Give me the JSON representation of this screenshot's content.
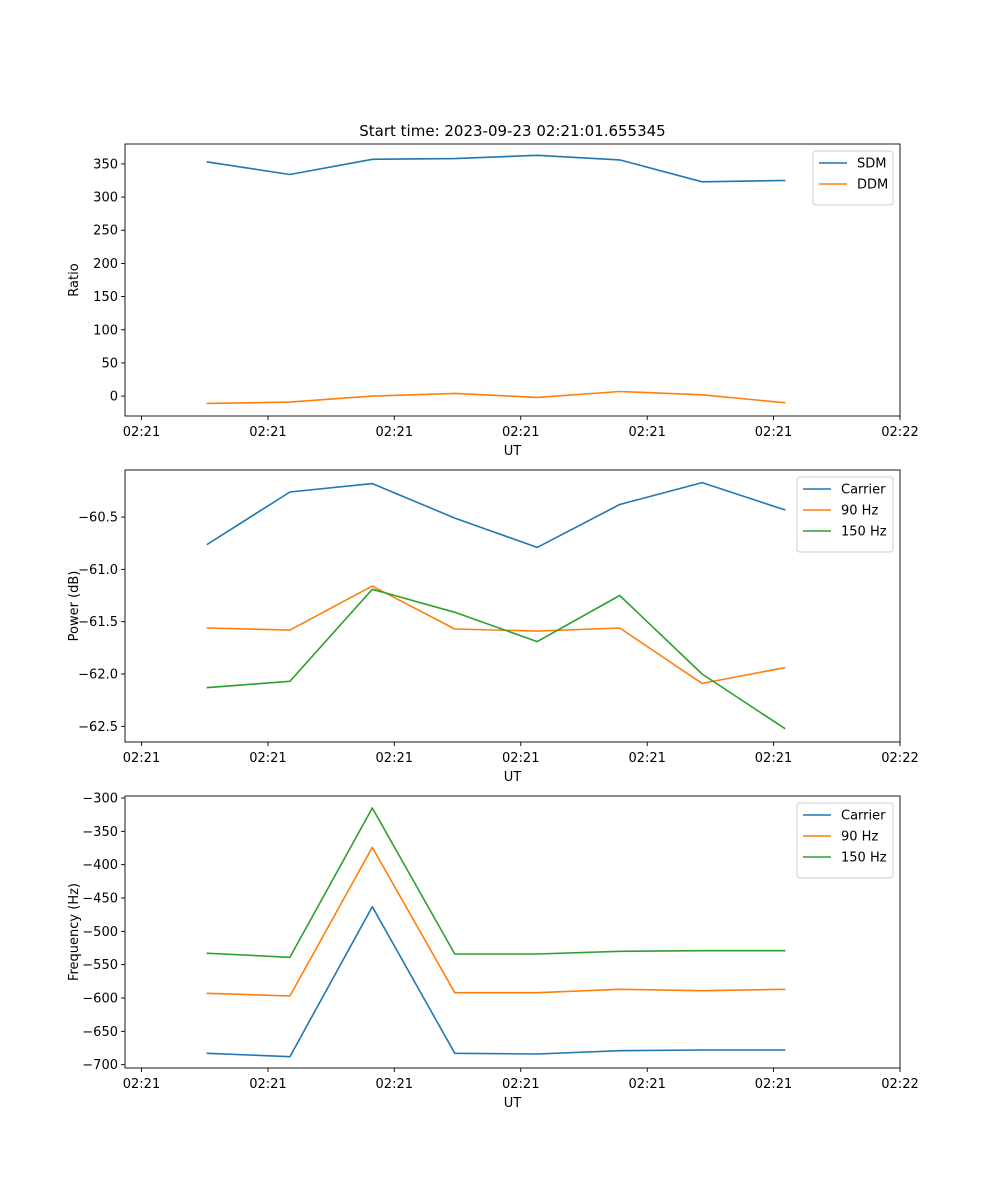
{
  "figure": {
    "title": "Start time: 2023-09-23 02:21:01.655345"
  },
  "chart_data": [
    {
      "type": "line",
      "title": "Start time: 2023-09-23 02:21:01.655345",
      "xlabel": "UT",
      "ylabel": "Ratio",
      "x": [
        0.5,
        1.0,
        1.5,
        2.0,
        2.5,
        3.0,
        3.5,
        4.0
      ],
      "xlim": [
        0,
        4.7
      ],
      "x_ticks": [
        0.1,
        0.867,
        1.633,
        2.4,
        3.167,
        3.933,
        4.7
      ],
      "x_tick_labels": [
        "02:21",
        "02:21",
        "02:21",
        "02:21",
        "02:21",
        "02:21",
        "02:22"
      ],
      "ylim": [
        -30,
        380
      ],
      "y_ticks": [
        0,
        50,
        100,
        150,
        200,
        250,
        300,
        350
      ],
      "y_tick_labels": [
        "0",
        "50",
        "100",
        "150",
        "200",
        "250",
        "300",
        "350"
      ],
      "legend": "top-right",
      "series": [
        {
          "name": "SDM",
          "color": "#1f77b4",
          "values": [
            353,
            334,
            357,
            358,
            363,
            356,
            323,
            325
          ]
        },
        {
          "name": "DDM",
          "color": "#ff7f0e",
          "values": [
            -11,
            -9,
            0,
            4,
            -2,
            7,
            2,
            -10
          ]
        }
      ]
    },
    {
      "type": "line",
      "xlabel": "UT",
      "ylabel": "Power (dB)",
      "x": [
        0.5,
        1.0,
        1.5,
        2.0,
        2.5,
        3.0,
        3.5,
        4.0
      ],
      "xlim": [
        0,
        4.7
      ],
      "x_ticks": [
        0.1,
        0.867,
        1.633,
        2.4,
        3.167,
        3.933,
        4.7
      ],
      "x_tick_labels": [
        "02:21",
        "02:21",
        "02:21",
        "02:21",
        "02:21",
        "02:21",
        "02:22"
      ],
      "ylim": [
        -62.65,
        -60.05
      ],
      "y_ticks": [
        -62.5,
        -62.0,
        -61.5,
        -61.0,
        -60.5
      ],
      "y_tick_labels": [
        "−62.5",
        "−62.0",
        "−61.5",
        "−61.0",
        "−60.5"
      ],
      "legend": "top-right",
      "series": [
        {
          "name": "Carrier",
          "color": "#1f77b4",
          "values": [
            -60.76,
            -60.26,
            -60.18,
            -60.51,
            -60.79,
            -60.38,
            -60.17,
            -60.43
          ]
        },
        {
          "name": "90 Hz",
          "color": "#ff7f0e",
          "values": [
            -61.56,
            -61.58,
            -61.16,
            -61.57,
            -61.59,
            -61.56,
            -62.09,
            -61.94
          ]
        },
        {
          "name": "150 Hz",
          "color": "#2ca02c",
          "values": [
            -62.13,
            -62.07,
            -61.19,
            -61.41,
            -61.69,
            -61.25,
            -62.0,
            -62.52
          ]
        }
      ]
    },
    {
      "type": "line",
      "xlabel": "UT",
      "ylabel": "Frequency (Hz)",
      "x": [
        0.5,
        1.0,
        1.5,
        2.0,
        2.5,
        3.0,
        3.5,
        4.0
      ],
      "xlim": [
        0,
        4.7
      ],
      "x_ticks": [
        0.1,
        0.867,
        1.633,
        2.4,
        3.167,
        3.933,
        4.7
      ],
      "x_tick_labels": [
        "02:21",
        "02:21",
        "02:21",
        "02:21",
        "02:21",
        "02:21",
        "02:22"
      ],
      "ylim": [
        -705,
        -297
      ],
      "y_ticks": [
        -700,
        -650,
        -600,
        -550,
        -500,
        -450,
        -400,
        -350,
        -300
      ],
      "y_tick_labels": [
        "−700",
        "−650",
        "−600",
        "−550",
        "−500",
        "−450",
        "−400",
        "−350",
        "−300"
      ],
      "legend": "top-right",
      "series": [
        {
          "name": "Carrier",
          "color": "#1f77b4",
          "values": [
            -683,
            -688,
            -463,
            -683,
            -684,
            -679,
            -678,
            -678
          ]
        },
        {
          "name": "90 Hz",
          "color": "#ff7f0e",
          "values": [
            -593,
            -597,
            -374,
            -592,
            -592,
            -587,
            -589,
            -587
          ]
        },
        {
          "name": "150 Hz",
          "color": "#2ca02c",
          "values": [
            -533,
            -539,
            -315,
            -534,
            -534,
            -530,
            -529,
            -529
          ]
        }
      ]
    }
  ]
}
